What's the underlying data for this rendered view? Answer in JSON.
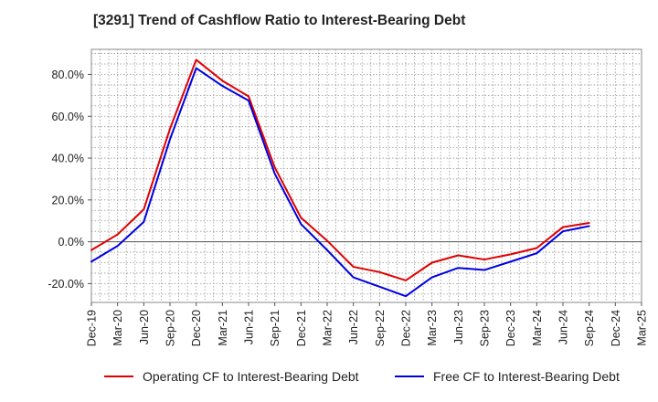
{
  "title": "[3291]  Trend of Cashflow Ratio to Interest-Bearing Debt",
  "colors": {
    "operating": "#e00000",
    "free": "#0000e0",
    "grid": "#999999",
    "zero_line": "#555555"
  },
  "chart_data": {
    "type": "line",
    "title": "[3291]  Trend of Cashflow Ratio to Interest-Bearing Debt",
    "xlabel": "",
    "ylabel": "",
    "categories": [
      "Dec-19",
      "Mar-20",
      "Jun-20",
      "Sep-20",
      "Dec-20",
      "Mar-21",
      "Jun-21",
      "Sep-21",
      "Dec-21",
      "Mar-22",
      "Jun-22",
      "Sep-22",
      "Dec-22",
      "Mar-23",
      "Jun-23",
      "Sep-23",
      "Dec-23",
      "Mar-24",
      "Jun-24",
      "Sep-24",
      "Dec-24",
      "Mar-25"
    ],
    "ylim": [
      -29,
      92
    ],
    "yticks": [
      -20,
      0,
      20,
      40,
      60,
      80
    ],
    "ytick_labels": [
      "-20.0%",
      "0.0%",
      "20.0%",
      "40.0%",
      "60.0%",
      "80.0%"
    ],
    "grid": true,
    "legend_position": "bottom",
    "series": [
      {
        "name": "Operating CF to Interest-Bearing Debt",
        "color": "#e00000",
        "values": [
          -4.0,
          3.5,
          15.5,
          54.0,
          87.0,
          77.0,
          69.5,
          35.5,
          11.5,
          0.5,
          -12.0,
          -14.5,
          -18.5,
          -10.0,
          -6.5,
          -8.5,
          -6.0,
          -3.0,
          7.0,
          9.0,
          null,
          null
        ]
      },
      {
        "name": "Free CF to Interest-Bearing Debt",
        "color": "#0000e0",
        "values": [
          -9.5,
          -2.0,
          9.5,
          49.0,
          83.0,
          74.5,
          67.5,
          32.5,
          8.5,
          -4.0,
          -17.0,
          -21.5,
          -26.0,
          -17.0,
          -12.5,
          -13.5,
          -9.5,
          -5.5,
          5.0,
          7.5,
          null,
          null
        ]
      }
    ]
  }
}
